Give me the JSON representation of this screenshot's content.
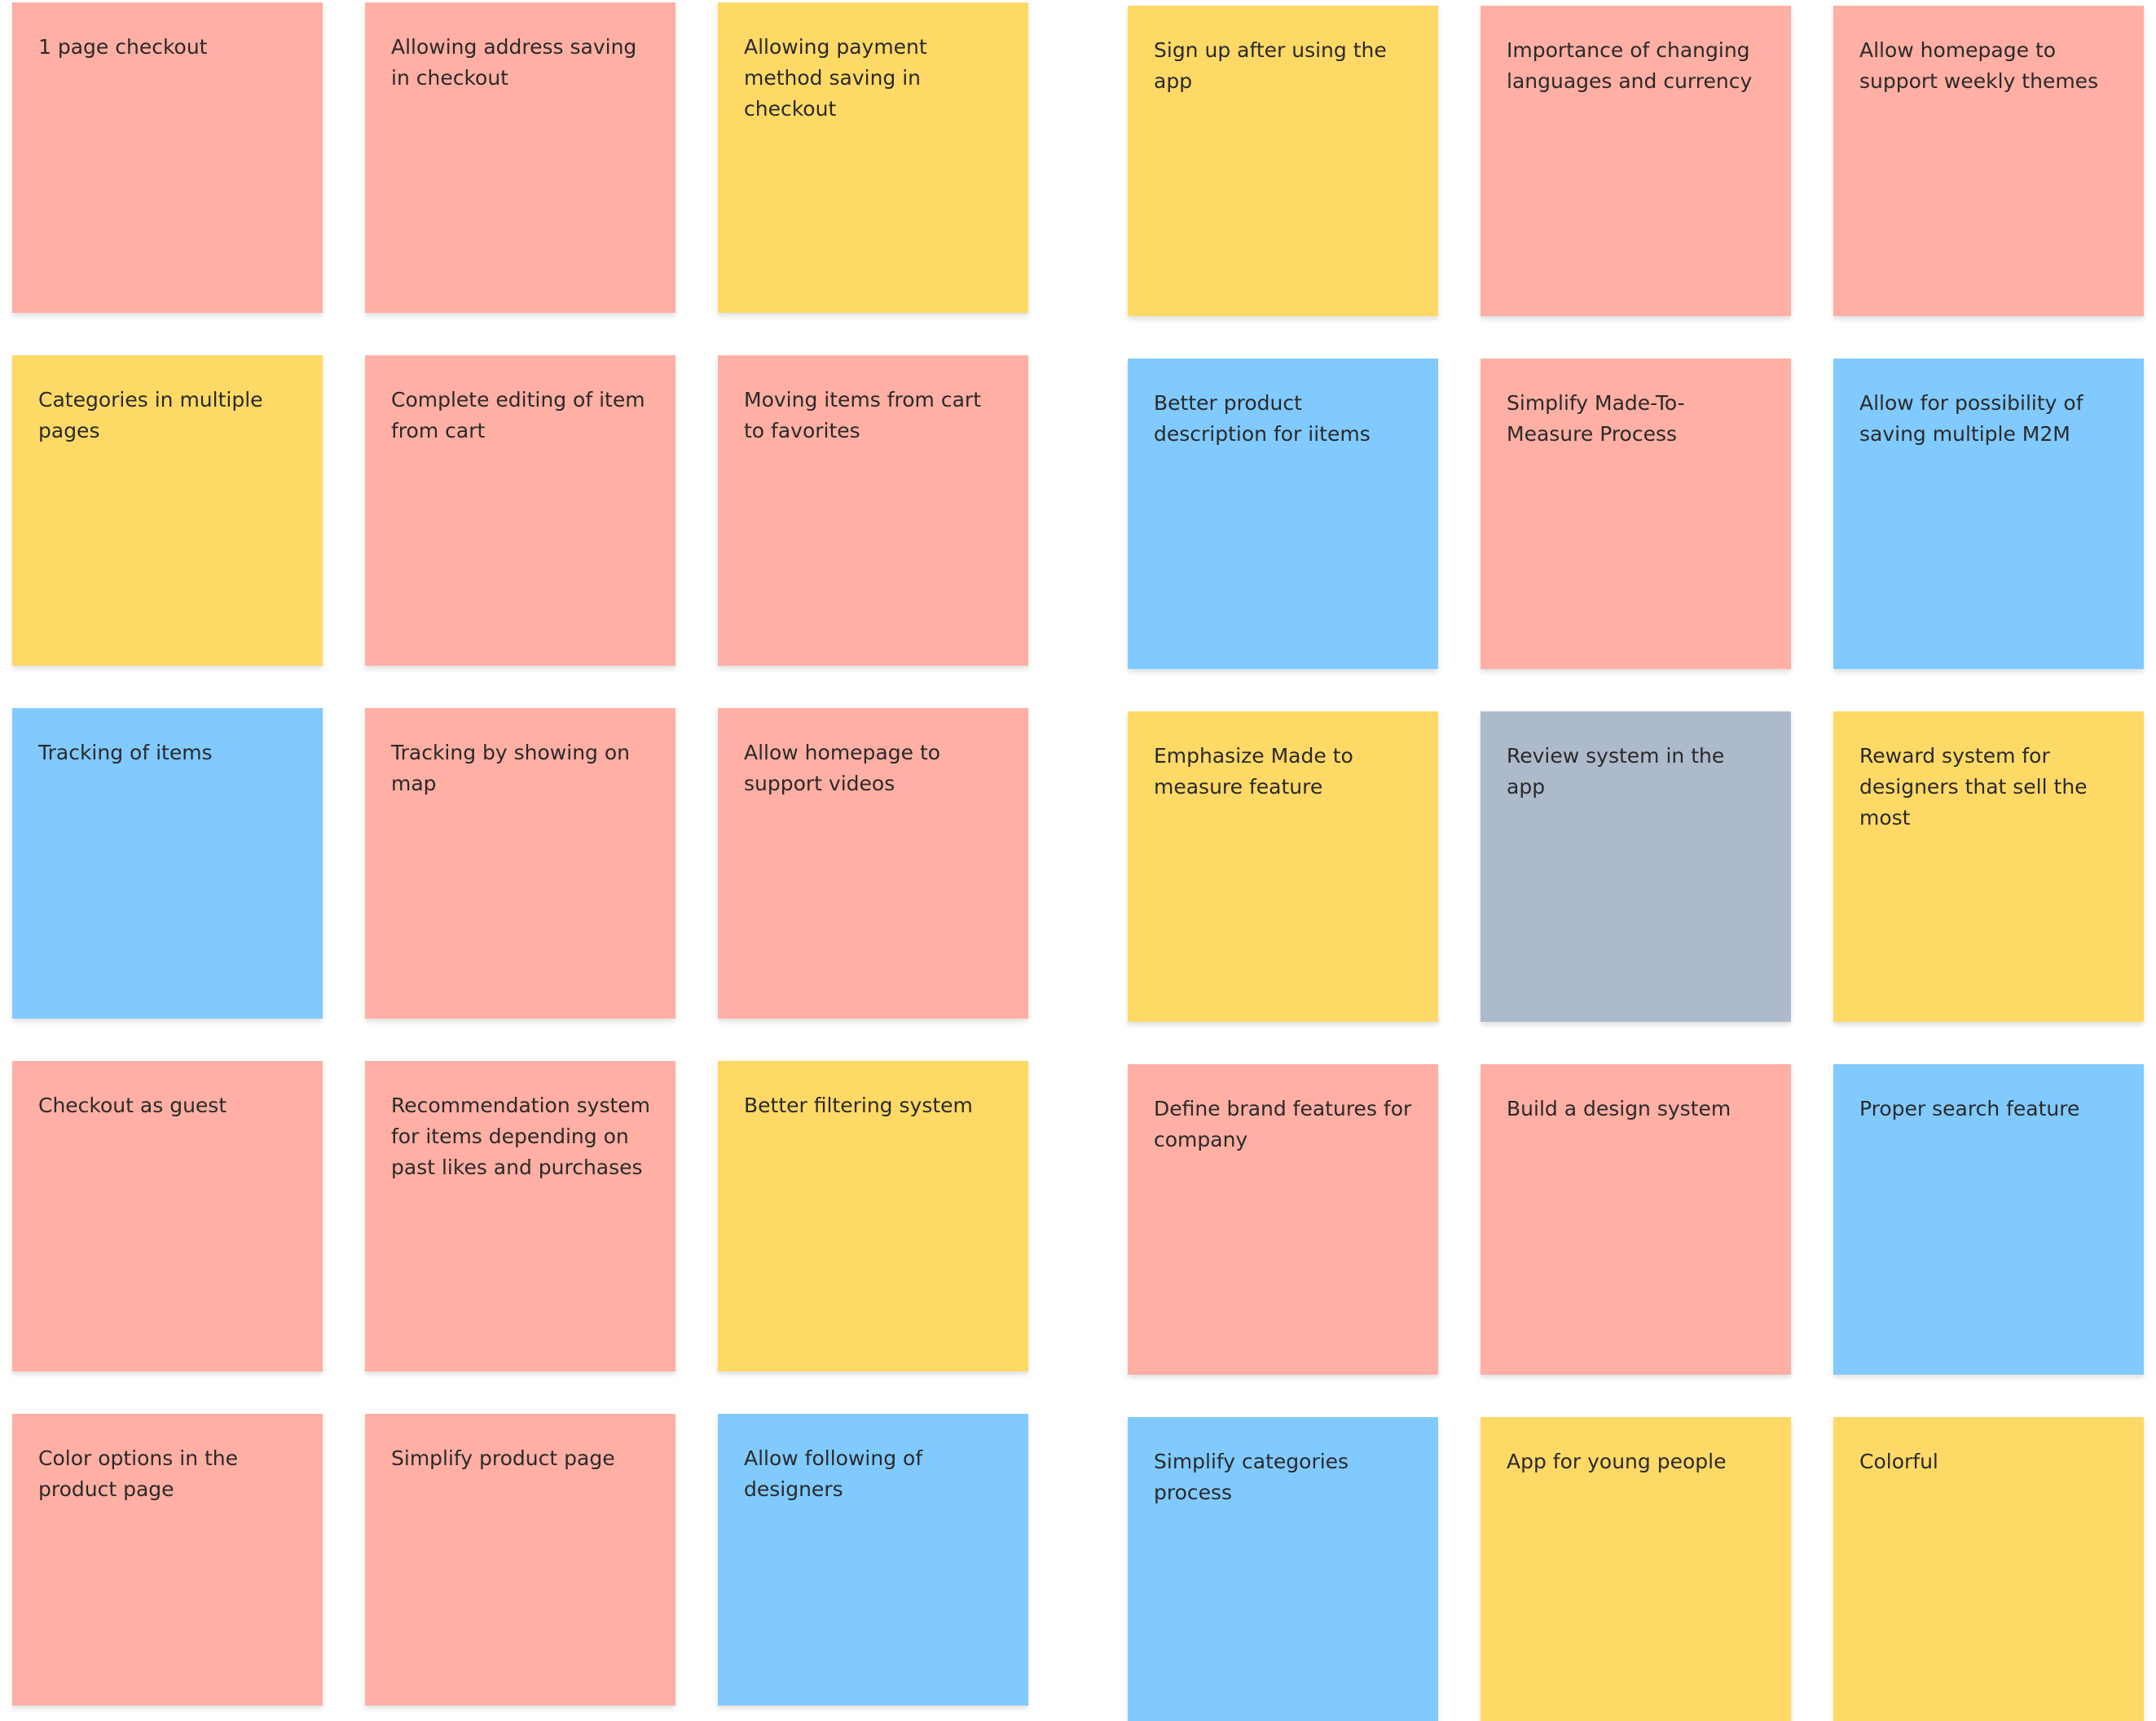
{
  "groups": [
    {
      "notes": [
        {
          "text": "1 page checkout",
          "color": "#ffafa3"
        },
        {
          "text": "Allowing address saving in checkout",
          "color": "#ffafa3"
        },
        {
          "text": "Allowing payment method saving in checkout",
          "color": "#ffd966"
        },
        {
          "text": "Categories in multiple pages",
          "color": "#ffd966"
        },
        {
          "text": "Complete editing of item from cart",
          "color": "#ffafa3"
        },
        {
          "text": "Moving items from cart to favorites",
          "color": "#ffafa3"
        },
        {
          "text": "Tracking of items",
          "color": "#80caff"
        },
        {
          "text": "Tracking by showing on map",
          "color": "#ffafa3"
        },
        {
          "text": "Allow homepage to support videos",
          "color": "#ffafa3"
        },
        {
          "text": "Checkout as guest",
          "color": "#ffafa3"
        },
        {
          "text": "Recommendation system for items depending on past likes and purchases",
          "color": "#ffafa3"
        },
        {
          "text": "Better filtering system",
          "color": "#ffd966"
        },
        {
          "text": "Color options in the product page",
          "color": "#ffafa3"
        },
        {
          "text": "Simplify product page",
          "color": "#ffafa3"
        },
        {
          "text": "Allow following of designers",
          "color": "#80caff"
        }
      ]
    },
    {
      "notes": [
        {
          "text": "Sign up after using the app",
          "color": "#ffd966"
        },
        {
          "text": "Importance of changing languages and currency",
          "color": "#ffafa3"
        },
        {
          "text": "Allow homepage to support weekly themes",
          "color": "#ffafa3"
        },
        {
          "text": "Better product description for iitems",
          "color": "#80caff"
        },
        {
          "text": "Simplify Made-To-Measure Process",
          "color": "#ffafa3"
        },
        {
          "text": "Allow for possibility of saving multiple M2M",
          "color": "#80caff"
        },
        {
          "text": "Emphasize Made to measure feature",
          "color": "#ffd966"
        },
        {
          "text": "Review system in the app",
          "color": "#adbacc"
        },
        {
          "text": "Reward system for designers that sell the most",
          "color": "#ffd966"
        },
        {
          "text": "Define brand features for company",
          "color": "#ffafa3"
        },
        {
          "text": "Build a design system",
          "color": "#ffafa3"
        },
        {
          "text": "Proper search feature",
          "color": "#80caff"
        },
        {
          "text": "Simplify categories process",
          "color": "#80caff"
        },
        {
          "text": "App for young people",
          "color": "#ffd966"
        },
        {
          "text": "Colorful",
          "color": "#ffd966"
        }
      ]
    }
  ]
}
